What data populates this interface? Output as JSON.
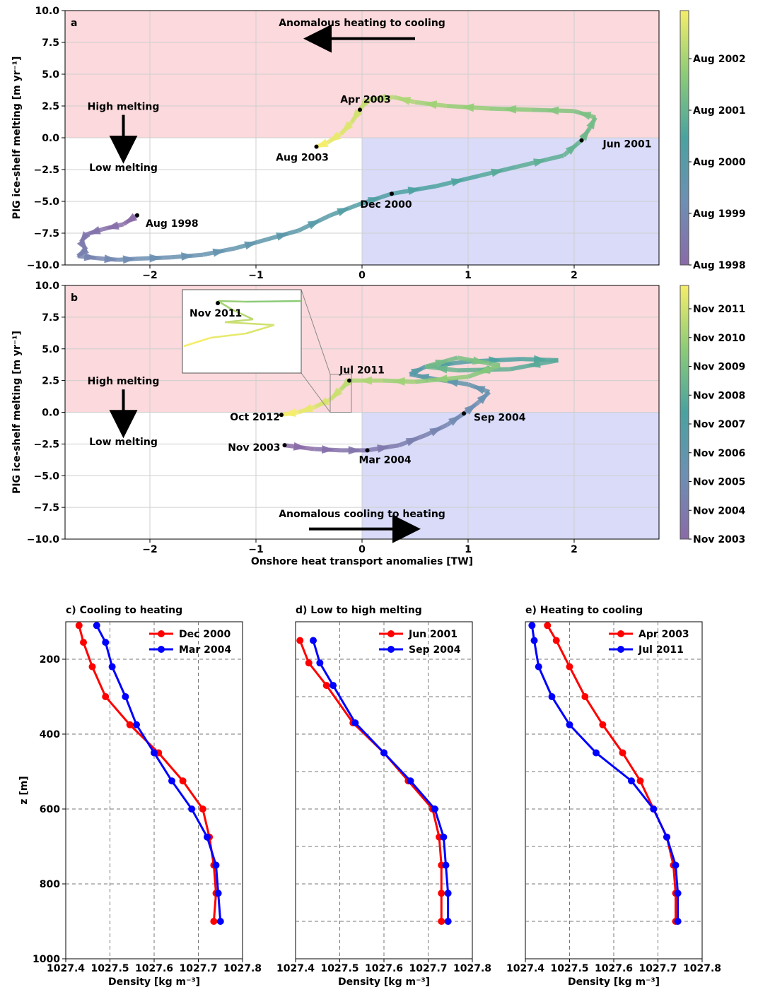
{
  "chart_data": [
    {
      "panel": "a",
      "type": "line",
      "xlabel": "",
      "ylabel": "PIG ice-shelf melting [m yr⁻¹]",
      "xlim": [
        -2.8,
        2.8
      ],
      "ylim": [
        -10,
        10
      ],
      "xticks": [
        "−2",
        "−1",
        "0",
        "1",
        "2"
      ],
      "yticks": [
        "10.0",
        "7.5",
        "5.0",
        "2.5",
        "0.0",
        "−2.5",
        "−5.0",
        "−7.5",
        "−10.0"
      ],
      "quadrants": {
        "upper_left_and_right": "pink (heating/high melting)",
        "lower_right": "blue"
      },
      "annotations": {
        "title_arrow": "Anomalous heating to cooling",
        "high": "High melting",
        "low": "Low melting",
        "labels": [
          {
            "text": "Aug 1998",
            "x": -2.12,
            "y": -6.1
          },
          {
            "text": "Dec 2000",
            "x": 0.28,
            "y": -4.4
          },
          {
            "text": "Jun 2001",
            "x": 2.07,
            "y": -0.2
          },
          {
            "text": "Apr 2003",
            "x": -0.02,
            "y": 2.2
          },
          {
            "text": "Aug 2003",
            "x": -0.43,
            "y": -0.7
          }
        ]
      },
      "trajectory": [
        [
          -2.12,
          -6.1
        ],
        [
          -2.25,
          -6.8
        ],
        [
          -2.45,
          -7.2
        ],
        [
          -2.6,
          -7.6
        ],
        [
          -2.65,
          -8.2
        ],
        [
          -2.6,
          -8.8
        ],
        [
          -2.68,
          -9.3
        ],
        [
          -2.45,
          -9.5
        ],
        [
          -2.3,
          -9.6
        ],
        [
          -2.1,
          -9.5
        ],
        [
          -1.8,
          -9.4
        ],
        [
          -1.5,
          -9.2
        ],
        [
          -1.2,
          -8.7
        ],
        [
          -0.9,
          -8.0
        ],
        [
          -0.6,
          -7.3
        ],
        [
          -0.3,
          -6.1
        ],
        [
          -0.05,
          -5.3
        ],
        [
          0.28,
          -4.4
        ],
        [
          0.7,
          -3.8
        ],
        [
          1.1,
          -3.0
        ],
        [
          1.45,
          -2.3
        ],
        [
          1.9,
          -1.4
        ],
        [
          2.07,
          -0.2
        ],
        [
          2.15,
          0.8
        ],
        [
          2.2,
          1.6
        ],
        [
          2.0,
          2.1
        ],
        [
          1.6,
          2.2
        ],
        [
          1.2,
          2.3
        ],
        [
          0.8,
          2.5
        ],
        [
          0.5,
          2.8
        ],
        [
          0.3,
          3.2
        ],
        [
          0.05,
          3.0
        ],
        [
          -0.02,
          2.2
        ],
        [
          -0.1,
          1.2
        ],
        [
          -0.2,
          0.3
        ],
        [
          -0.33,
          -0.4
        ],
        [
          -0.43,
          -0.7
        ]
      ],
      "colorbar": {
        "labels": [
          "Aug 2002",
          "Aug 2001",
          "Aug 2000",
          "Aug 1999",
          "Aug 1998"
        ],
        "colormap": "viridis"
      }
    },
    {
      "panel": "b",
      "type": "line",
      "xlabel": "Onshore heat transport anomalies [TW]",
      "ylabel": "PIG ice-shelf melting [m yr⁻¹]",
      "xlim": [
        -2.8,
        2.8
      ],
      "ylim": [
        -10,
        10
      ],
      "xticks": [
        "−2",
        "−1",
        "0",
        "1",
        "2"
      ],
      "yticks": [
        "10.0",
        "7.5",
        "5.0",
        "2.5",
        "0.0",
        "−2.5",
        "−5.0",
        "−7.5",
        "−10.0"
      ],
      "annotations": {
        "title_arrow": "Anomalous cooling to heating",
        "high": "High melting",
        "low": "Low melting",
        "labels": [
          {
            "text": "Nov 2003",
            "x": -0.73,
            "y": -2.6
          },
          {
            "text": "Mar 2004",
            "x": 0.05,
            "y": -3.0
          },
          {
            "text": "Sep 2004",
            "x": 0.96,
            "y": -0.1
          },
          {
            "text": "Jul 2011",
            "x": -0.12,
            "y": 2.5
          },
          {
            "text": "Oct 2012",
            "x": -0.76,
            "y": -0.2
          },
          {
            "text": "Nov 2011",
            "x": -1.36,
            "y": 8.6,
            "where": "inset"
          }
        ]
      },
      "trajectory": [
        [
          -0.73,
          -2.6
        ],
        [
          -0.45,
          -2.9
        ],
        [
          -0.2,
          -3.0
        ],
        [
          0.05,
          -3.0
        ],
        [
          0.35,
          -2.6
        ],
        [
          0.6,
          -1.8
        ],
        [
          0.8,
          -1.0
        ],
        [
          0.96,
          -0.1
        ],
        [
          1.1,
          0.8
        ],
        [
          1.2,
          1.6
        ],
        [
          1.0,
          2.2
        ],
        [
          0.7,
          2.6
        ],
        [
          0.45,
          3.0
        ],
        [
          0.6,
          3.6
        ],
        [
          1.0,
          4.0
        ],
        [
          1.5,
          4.2
        ],
        [
          1.85,
          4.1
        ],
        [
          1.4,
          3.4
        ],
        [
          0.9,
          3.3
        ],
        [
          0.6,
          3.6
        ],
        [
          0.9,
          4.3
        ],
        [
          1.3,
          3.7
        ],
        [
          1.0,
          2.8
        ],
        [
          0.5,
          2.4
        ],
        [
          0.2,
          2.5
        ],
        [
          -0.12,
          2.5
        ],
        [
          -0.2,
          1.8
        ],
        [
          -0.3,
          1.0
        ],
        [
          -0.45,
          0.4
        ],
        [
          -0.6,
          0.0
        ],
        [
          -0.76,
          -0.2
        ]
      ],
      "colorbar": {
        "labels": [
          "Nov 2011",
          "Nov 2010",
          "Nov 2009",
          "Nov 2008",
          "Nov 2007",
          "Nov 2006",
          "Nov 2005",
          "Nov 2004",
          "Nov 2003"
        ],
        "colormap": "viridis"
      }
    },
    {
      "panel": "c",
      "type": "line",
      "title": "c) Cooling to heating",
      "xlabel": "Density [kg m⁻³]",
      "ylabel": "z [m]",
      "xlim": [
        1027.4,
        1027.8
      ],
      "ylim": [
        1000,
        100
      ],
      "xticks": [
        "1027.4",
        "1027.5",
        "1027.6",
        "1027.7",
        "1027.8"
      ],
      "yticks": [
        "200",
        "400",
        "600",
        "800",
        "1000"
      ],
      "depth": [
        110,
        155,
        220,
        300,
        375,
        450,
        525,
        600,
        675,
        750,
        825,
        900
      ],
      "series": [
        {
          "name": "Dec 2000",
          "color": "#ff0000",
          "values": [
            1027.43,
            1027.44,
            1027.46,
            1027.49,
            1027.545,
            1027.61,
            1027.665,
            1027.71,
            1027.725,
            1027.735,
            1027.74,
            1027.735
          ]
        },
        {
          "name": "Mar 2004",
          "color": "#0000ff",
          "values": [
            1027.47,
            1027.49,
            1027.505,
            1027.535,
            1027.56,
            1027.6,
            1027.64,
            1027.685,
            1027.72,
            1027.74,
            1027.745,
            1027.75
          ]
        }
      ]
    },
    {
      "panel": "d",
      "type": "line",
      "title": "d) Low to high melting",
      "xlabel": "Density [kg m⁻³]",
      "ylabel": "",
      "xlim": [
        1027.4,
        1027.8
      ],
      "ylim": [
        1000,
        100
      ],
      "xticks": [
        "1027.4",
        "1027.5",
        "1027.6",
        "1027.7",
        "1027.8"
      ],
      "depth": [
        150,
        210,
        270,
        370,
        450,
        525,
        600,
        675,
        750,
        825,
        900
      ],
      "series": [
        {
          "name": "Jun 2001",
          "color": "#ff0000",
          "values": [
            1027.41,
            1027.43,
            1027.47,
            1027.53,
            1027.6,
            1027.655,
            1027.71,
            1027.725,
            1027.73,
            1027.73,
            1027.73
          ]
        },
        {
          "name": "Sep 2004",
          "color": "#0000ff",
          "values": [
            1027.44,
            1027.455,
            1027.485,
            1027.535,
            1027.6,
            1027.66,
            1027.715,
            1027.735,
            1027.74,
            1027.745,
            1027.745
          ]
        }
      ]
    },
    {
      "panel": "e",
      "type": "line",
      "title": "e) Heating to cooling",
      "xlabel": "Density [kg m⁻³]",
      "ylabel": "",
      "xlim": [
        1027.4,
        1027.8
      ],
      "ylim": [
        1000,
        100
      ],
      "xticks": [
        "1027.4",
        "1027.5",
        "1027.6",
        "1027.7",
        "1027.8"
      ],
      "depth": [
        110,
        150,
        220,
        300,
        375,
        450,
        525,
        600,
        675,
        750,
        825,
        900
      ],
      "series": [
        {
          "name": "Apr 2003",
          "color": "#ff0000",
          "values": [
            1027.45,
            1027.47,
            1027.5,
            1027.535,
            1027.575,
            1027.62,
            1027.66,
            1027.69,
            1027.72,
            1027.735,
            1027.74,
            1027.74
          ]
        },
        {
          "name": "Jul 2011",
          "color": "#0000ff",
          "values": [
            1027.415,
            1027.42,
            1027.43,
            1027.46,
            1027.5,
            1027.56,
            1027.64,
            1027.69,
            1027.72,
            1027.74,
            1027.745,
            1027.745
          ]
        }
      ]
    }
  ],
  "labels": {
    "panel_a_letter": "a",
    "panel_b_letter": "b"
  }
}
